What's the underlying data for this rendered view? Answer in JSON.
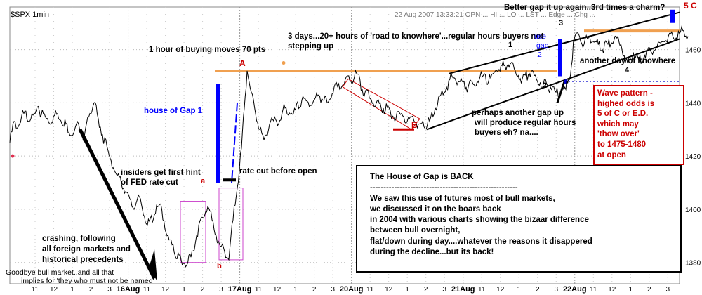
{
  "chart_data": {
    "type": "line",
    "title": "$SPX 1min",
    "ylim": [
      1372,
      1476
    ],
    "yticks": [
      1380,
      1400,
      1420,
      1440,
      1460
    ],
    "xticks": [
      "11",
      "12",
      "1",
      "2",
      "3",
      "16Aug",
      "11",
      "12",
      "1",
      "2",
      "3",
      "17Aug",
      "11",
      "12",
      "1",
      "2",
      "3",
      "20Aug",
      "11",
      "12",
      "1",
      "2",
      "3",
      "21Aug",
      "11",
      "12",
      "1",
      "2",
      "3",
      "22Aug",
      "11",
      "12",
      "1",
      "2",
      "3"
    ],
    "day_labels": [
      "16Aug",
      "17Aug",
      "20Aug",
      "21Aug",
      "22Aug"
    ],
    "series": [
      {
        "values_note": "",
        "points": [
          [
            0,
            1425
          ],
          [
            6,
            1433
          ],
          [
            12,
            1431
          ],
          [
            20,
            1436
          ],
          [
            30,
            1434
          ],
          [
            42,
            1437
          ],
          [
            55,
            1433
          ],
          [
            68,
            1436
          ],
          [
            80,
            1432
          ],
          [
            90,
            1428
          ],
          [
            98,
            1432
          ],
          [
            106,
            1427
          ],
          [
            114,
            1436
          ],
          [
            120,
            1440
          ],
          [
            126,
            1434
          ],
          [
            132,
            1428
          ],
          [
            140,
            1422
          ],
          [
            150,
            1414
          ],
          [
            162,
            1408
          ],
          [
            174,
            1401
          ],
          [
            186,
            1404
          ],
          [
            196,
            1394
          ],
          [
            206,
            1398
          ],
          [
            215,
            1402
          ],
          [
            224,
            1390
          ],
          [
            234,
            1384
          ],
          [
            244,
            1381
          ],
          [
            252,
            1379
          ],
          [
            258,
            1382
          ],
          [
            266,
            1390
          ],
          [
            274,
            1397
          ],
          [
            282,
            1401
          ],
          [
            288,
            1396
          ],
          [
            294,
            1390
          ],
          [
            300,
            1386
          ],
          [
            306,
            1384
          ],
          [
            312,
            1381
          ],
          [
            318,
            1396
          ],
          [
            324,
            1408
          ],
          [
            330,
            1423
          ],
          [
            334,
            1438
          ],
          [
            338,
            1452
          ],
          [
            344,
            1444
          ],
          [
            350,
            1436
          ],
          [
            356,
            1430
          ],
          [
            362,
            1426
          ],
          [
            370,
            1432
          ],
          [
            380,
            1433
          ],
          [
            392,
            1438
          ],
          [
            404,
            1436
          ],
          [
            416,
            1441
          ],
          [
            428,
            1439
          ],
          [
            440,
            1443
          ],
          [
            452,
            1440
          ],
          [
            462,
            1446
          ],
          [
            470,
            1445
          ],
          [
            478,
            1449
          ],
          [
            486,
            1448
          ],
          [
            494,
            1451
          ],
          [
            502,
            1445
          ],
          [
            512,
            1442
          ],
          [
            522,
            1440
          ],
          [
            532,
            1438
          ],
          [
            542,
            1437
          ],
          [
            550,
            1434
          ],
          [
            558,
            1436
          ],
          [
            566,
            1433
          ],
          [
            574,
            1435
          ],
          [
            582,
            1432
          ],
          [
            590,
            1431
          ],
          [
            598,
            1433
          ],
          [
            606,
            1438
          ],
          [
            614,
            1443
          ],
          [
            622,
            1446
          ],
          [
            630,
            1450
          ],
          [
            640,
            1448
          ],
          [
            650,
            1446
          ],
          [
            660,
            1447
          ],
          [
            670,
            1450
          ],
          [
            682,
            1448
          ],
          [
            694,
            1452
          ],
          [
            704,
            1454
          ],
          [
            714,
            1455
          ],
          [
            720,
            1452
          ],
          [
            730,
            1449
          ],
          [
            740,
            1451
          ],
          [
            750,
            1449
          ],
          [
            760,
            1447
          ],
          [
            770,
            1446
          ],
          [
            778,
            1444
          ],
          [
            786,
            1445
          ],
          [
            792,
            1445
          ],
          [
            796,
            1449
          ],
          [
            800,
            1454
          ],
          [
            804,
            1464
          ],
          [
            810,
            1466
          ],
          [
            818,
            1462
          ],
          [
            826,
            1465
          ],
          [
            834,
            1463
          ],
          [
            844,
            1460
          ],
          [
            852,
            1462
          ],
          [
            862,
            1465
          ],
          [
            872,
            1460
          ],
          [
            880,
            1455
          ],
          [
            888,
            1459
          ],
          [
            896,
            1456
          ],
          [
            904,
            1458
          ],
          [
            914,
            1459
          ],
          [
            922,
            1461
          ],
          [
            930,
            1463
          ],
          [
            938,
            1465
          ],
          [
            946,
            1464
          ],
          [
            954,
            1466
          ],
          [
            960,
            1467
          ],
          [
            966,
            1465
          ]
        ]
      }
    ],
    "levels": [
      {
        "value": 1452,
        "color": "#f0a050"
      },
      {
        "value": 1467,
        "color": "#f0a050"
      },
      {
        "value": 1448,
        "color": "#0000cc",
        "style": "dotted"
      }
    ]
  },
  "header": {
    "top_right_corner": "5 C",
    "header_faint_text": "22 Aug 2007 13:33:21 OPN ... HI ... LO ... LST ... Edge ... Chg ..."
  },
  "annotations": {
    "better_gap": "Better gap it up again..3rd times a charm?",
    "three_days_line1": "3 days...20+ hours of 'road to knowhere'...regular hours buyers not",
    "three_days_line2": "stepping up",
    "one_hour": "1 hour of buying moves 70 pts",
    "house_of_gap_1": "house of Gap 1",
    "insiders_line1": "insiders get first hint",
    "insiders_line2": "of FED rate cut",
    "rate_cut": "rate cut before open",
    "crashing_line1": "crashing, following",
    "crashing_line2": "all foreign markets and",
    "crashing_line3": "historical precedents",
    "goodbye": "Goodbye bull market..and all that",
    "implies": "implies for 'they who must not be named'",
    "perhaps_line1": "perhaps another gap up",
    "perhaps_line2": "will produce regular hours",
    "perhaps_line3": "buyers eh? na....",
    "another_day": "another day of knowhere",
    "label_a": "a",
    "label_b": "b",
    "label_A": "A",
    "label_B": "B",
    "label_1": "1",
    "label_2": "2",
    "label_3": "3",
    "label_4": "4",
    "gap2_line1": "use",
    "gap2_line2": "gap",
    "gap2_line3": "2"
  },
  "textbox": {
    "title": "The House of Gap is BACK",
    "divider": "-------------------------------------------------------",
    "lines": [
      "We saw this use of futures most of bull markets,",
      "we discussed it on the boars back",
      "in 2004 with various charts showing the bizaar difference",
      "  between bull overnight,",
      "flat/down during day....whatever the reasons it disappered",
      " during the decline...but its back!"
    ]
  },
  "wavebox": {
    "lines": [
      "Wave pattern -",
      "highed odds is",
      "5 of C or E.D.",
      "which may",
      "'thow over'",
      "to 1475-1480",
      "at open"
    ]
  },
  "colors": {
    "price": "#000000",
    "bg": "#ffffff",
    "accent_blue": "#0000ff",
    "accent_red": "#cc0000",
    "level_orange": "#f0a050",
    "box_magenta": "#cc44cc"
  }
}
